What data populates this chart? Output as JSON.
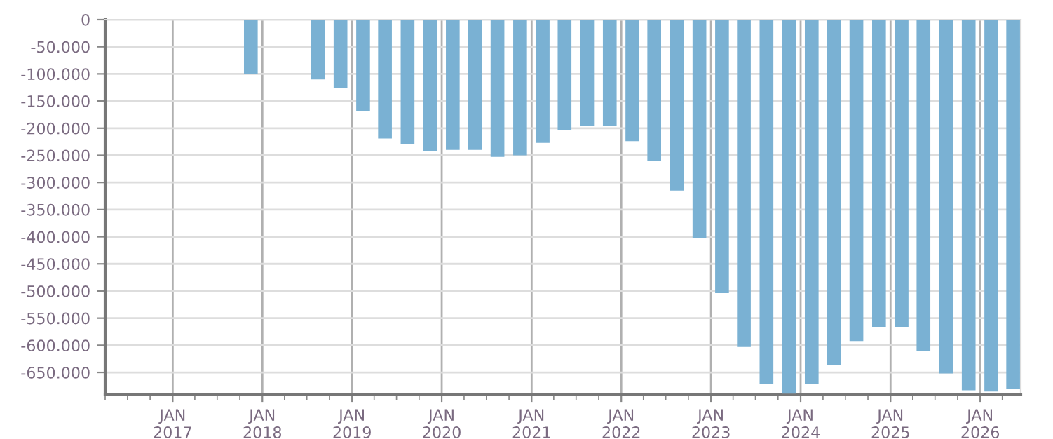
{
  "chart_data": {
    "type": "bar",
    "color": "#7ab1d3",
    "x": [
      "2017-11-15",
      "2018-08-15",
      "2018-11-15",
      "2019-02-15",
      "2019-05-15",
      "2019-08-15",
      "2019-11-15",
      "2020-02-15",
      "2020-05-15",
      "2020-08-15",
      "2020-11-15",
      "2021-02-15",
      "2021-05-15",
      "2021-08-15",
      "2021-11-15",
      "2022-02-15",
      "2022-05-15",
      "2022-08-15",
      "2022-11-15",
      "2023-02-15",
      "2023-05-15",
      "2023-08-15",
      "2023-11-15",
      "2024-02-15",
      "2024-05-15",
      "2024-08-15",
      "2024-11-15",
      "2025-02-15",
      "2025-05-15",
      "2025-08-15",
      "2025-11-15",
      "2026-02-15",
      "2026-05-15"
    ],
    "values": [
      -100000,
      -110000,
      -126000,
      -168000,
      -219000,
      -230000,
      -243000,
      -240000,
      -240000,
      -253000,
      -250000,
      -227000,
      -204000,
      -196000,
      -196000,
      -224000,
      -261000,
      -315000,
      -403000,
      -504000,
      -603000,
      -672000,
      -689000,
      -672000,
      -636000,
      -592000,
      -566000,
      -566000,
      -610000,
      -652000,
      -683000,
      -685000,
      -680000
    ],
    "xlim": [
      "2016-04-01",
      "2026-06-15"
    ],
    "xticks": [
      {
        "value": "2017-01-01",
        "label": "JAN\n2017"
      },
      {
        "value": "2018-01-01",
        "label": "JAN\n2018"
      },
      {
        "value": "2019-01-01",
        "label": "JAN\n2019"
      },
      {
        "value": "2020-01-01",
        "label": "JAN\n2020"
      },
      {
        "value": "2021-01-01",
        "label": "JAN\n2021"
      },
      {
        "value": "2022-01-01",
        "label": "JAN\n2022"
      },
      {
        "value": "2023-01-01",
        "label": "JAN\n2023"
      },
      {
        "value": "2024-01-01",
        "label": "JAN\n2024"
      },
      {
        "value": "2025-01-01",
        "label": "JAN\n2025"
      },
      {
        "value": "2026-01-01",
        "label": "JAN\n2026"
      }
    ],
    "ylim": [
      -690000,
      0
    ],
    "yticks": [
      0,
      {
        "value": -50000,
        "label": "-50.000"
      },
      {
        "value": -100000,
        "label": "-100.000"
      },
      {
        "value": -150000,
        "label": "-150.000"
      },
      {
        "value": -200000,
        "label": "-200.000"
      },
      {
        "value": -250000,
        "label": "-250.000"
      },
      {
        "value": -300000,
        "label": "-300.000"
      },
      {
        "value": -350000,
        "label": "-350.000"
      },
      {
        "value": -400000,
        "label": "-400.000"
      },
      {
        "value": -450000,
        "label": "-450.000"
      },
      {
        "value": -500000,
        "label": "-500.000"
      },
      {
        "value": -550000,
        "label": "-550.000"
      },
      {
        "value": -600000,
        "label": "-600.000"
      },
      {
        "value": -650000,
        "label": "-650.000"
      }
    ],
    "grid": true
  }
}
